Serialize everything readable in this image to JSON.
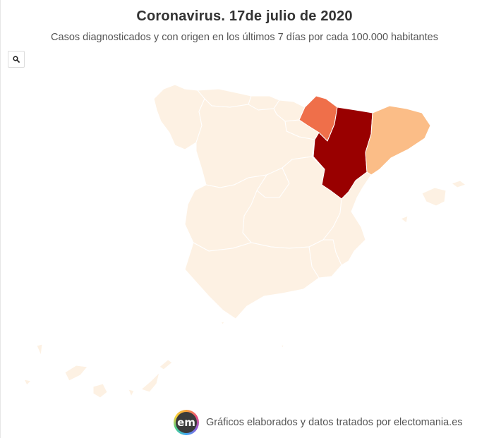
{
  "title": "Coronavirus. 17de julio de 2020",
  "subtitle": "Casos diagnosticados y con origen en los últimos 7 días por cada 100.000 habitantes",
  "zoom_button": {
    "icon": "search-icon"
  },
  "footer": {
    "logo_text": "em",
    "credit": "Gráficos elaborados y datos tratados por electomania.es"
  },
  "colors": {
    "background": "#ffffff",
    "base_region": "#fdf1e3",
    "region_border": "#ffffff",
    "aragon": "#990000",
    "navarra": "#ef6f4a",
    "cataluna": "#fbbd87"
  },
  "map": {
    "regions": [
      {
        "key": "galicia"
      },
      {
        "key": "asturias"
      },
      {
        "key": "cantabria"
      },
      {
        "key": "pais_vasco"
      },
      {
        "key": "navarra"
      },
      {
        "key": "la_rioja"
      },
      {
        "key": "castilla_y_leon"
      },
      {
        "key": "aragon"
      },
      {
        "key": "cataluna"
      },
      {
        "key": "madrid"
      },
      {
        "key": "castilla_la_mancha"
      },
      {
        "key": "extremadura"
      },
      {
        "key": "comunidad_valenciana"
      },
      {
        "key": "murcia"
      },
      {
        "key": "andalucia"
      },
      {
        "key": "baleares"
      },
      {
        "key": "canarias"
      },
      {
        "key": "ceuta"
      },
      {
        "key": "melilla"
      }
    ]
  }
}
